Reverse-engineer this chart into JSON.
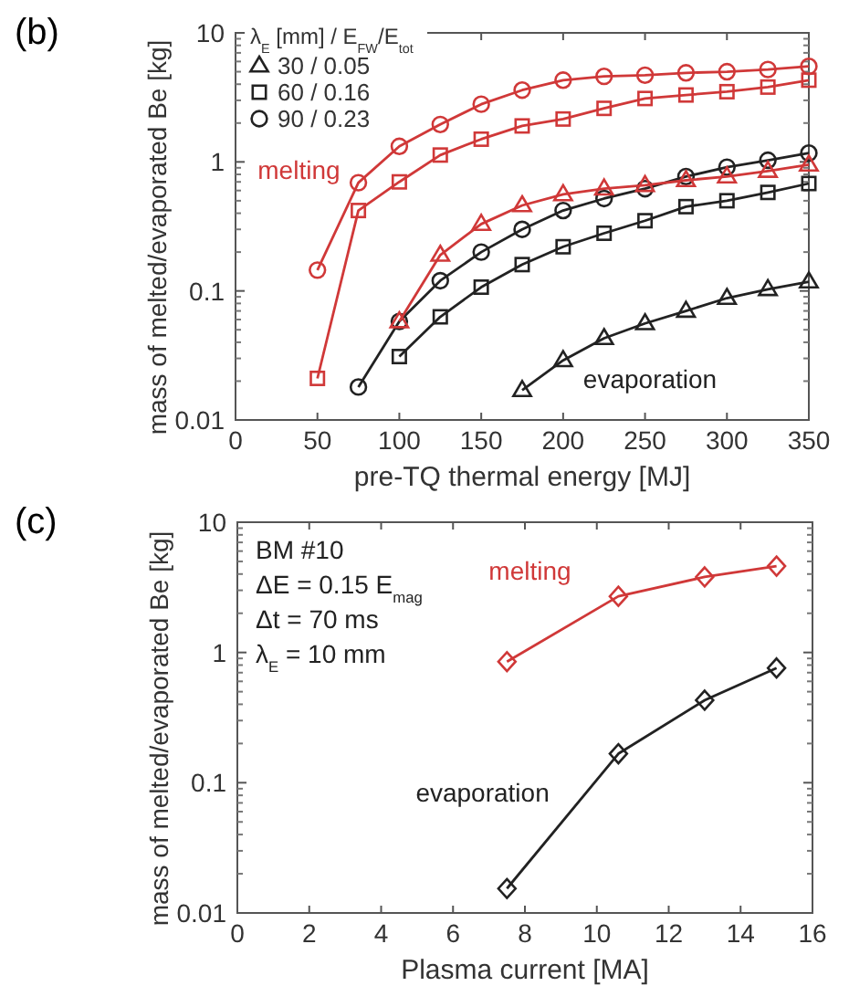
{
  "chart_data": [
    {
      "type": "line",
      "title": "(b)",
      "xlabel": "pre-TQ thermal energy [MJ]",
      "ylabel": "mass of melted/evaporated Be [kg]",
      "legend_title": "λ$_{E}$ [mm] / E$_{FW}$/E$_{tot}$",
      "legend": "top left",
      "log": true,
      "grid": false,
      "line_style": "solid",
      "xlim": [
        0,
        350
      ],
      "xticks": [
        0,
        50,
        100,
        150,
        200,
        250,
        300,
        350
      ],
      "ylim": [
        0.01,
        10
      ],
      "yticks": [
        0.01,
        0.1,
        1,
        10
      ],
      "series": [
        {
          "name": "30 / 0.05",
          "color": "#222222",
          "marker": "triangle",
          "x": [
            175,
            200,
            225,
            250,
            275,
            300,
            325,
            350
          ],
          "values": [
            0.017,
            0.029,
            0.043,
            0.056,
            0.07,
            0.088,
            0.103,
            0.118
          ]
        },
        {
          "name": "60 / 0.16",
          "color": "#222222",
          "marker": "square",
          "x": [
            100,
            125,
            150,
            175,
            200,
            225,
            250,
            275,
            300,
            325,
            350
          ],
          "values": [
            0.031,
            0.063,
            0.107,
            0.16,
            0.22,
            0.28,
            0.35,
            0.45,
            0.5,
            0.58,
            0.68
          ]
        },
        {
          "name": "90 / 0.23",
          "color": "#222222",
          "marker": "circle",
          "x": [
            75,
            100,
            125,
            150,
            175,
            200,
            225,
            250,
            275,
            300,
            325,
            350
          ],
          "values": [
            0.018,
            0.058,
            0.12,
            0.2,
            0.3,
            0.42,
            0.52,
            0.62,
            0.77,
            0.91,
            1.03,
            1.17
          ]
        },
        {
          "color": "#d03838",
          "marker": "triangle",
          "x": [
            100,
            125,
            150,
            175,
            200,
            225,
            250,
            275,
            300,
            325,
            350
          ],
          "values": [
            0.058,
            0.19,
            0.33,
            0.46,
            0.56,
            0.62,
            0.66,
            0.72,
            0.77,
            0.85,
            0.95
          ]
        },
        {
          "color": "#d03838",
          "marker": "square",
          "x": [
            50,
            75,
            100,
            125,
            150,
            175,
            200,
            225,
            250,
            275,
            300,
            325,
            350
          ],
          "values": [
            0.021,
            0.42,
            0.7,
            1.13,
            1.5,
            1.9,
            2.15,
            2.6,
            3.1,
            3.3,
            3.5,
            3.8,
            4.3
          ]
        },
        {
          "color": "#d03838",
          "marker": "circle",
          "x": [
            50,
            75,
            100,
            125,
            150,
            175,
            200,
            225,
            250,
            275,
            300,
            325,
            350
          ],
          "values": [
            0.145,
            0.69,
            1.32,
            1.95,
            2.8,
            3.6,
            4.3,
            4.6,
            4.7,
            4.9,
            5.0,
            5.2,
            5.5
          ]
        }
      ],
      "annotations": [
        {
          "text": "melting",
          "x": 75,
          "y": 0.69
        },
        {
          "text": "evaporation",
          "x": 200,
          "y": 0.029
        }
      ]
    },
    {
      "type": "line",
      "title": "(c)",
      "xlabel": "Plasma current [MA]",
      "ylabel": "mass of melted/evaporated Be [kg]",
      "log": true,
      "grid": false,
      "line_style": "solid",
      "xlim": [
        0,
        16
      ],
      "xticks": [
        0,
        2,
        4,
        6,
        8,
        10,
        12,
        14,
        16
      ],
      "ylim": [
        0.01,
        10
      ],
      "yticks": [
        0.01,
        0.1,
        1,
        10
      ],
      "series": [
        {
          "color": "#d03838",
          "marker": "diamond",
          "x": [
            7.5,
            10.6,
            13,
            15
          ],
          "values": [
            0.85,
            2.7,
            3.8,
            4.6
          ]
        },
        {
          "color": "#222222",
          "marker": "diamond",
          "x": [
            7.5,
            10.6,
            13,
            15
          ],
          "values": [
            0.0154,
            0.167,
            0.43,
            0.76
          ]
        }
      ],
      "annotations": [
        "BM #10",
        "ΔE = 0.15 E$_{mag}$",
        "Δt = 70 ms",
        "λ$_{E}$ = 10 mm",
        {
          "text": "melting",
          "x": 7.5,
          "y": 0.85
        },
        {
          "text": "evaporation",
          "x": 10.6,
          "y": 0.167
        }
      ]
    }
  ]
}
